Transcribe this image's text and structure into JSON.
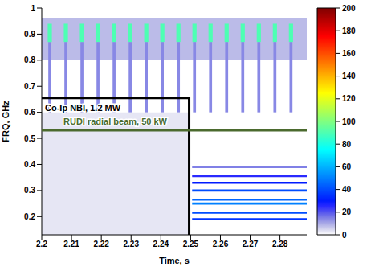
{
  "chart_data": {
    "type": "heatmap",
    "x_label": "Time, s",
    "y_label": "FRQ, GHz",
    "xlim": [
      2.2,
      2.289
    ],
    "xticks": [
      2.2,
      2.21,
      2.22,
      2.23,
      2.24,
      2.25,
      2.26,
      2.27,
      2.28
    ],
    "ylim": [
      0.13,
      1
    ],
    "yticks": [
      0.2,
      0.3,
      0.4,
      0.5,
      0.6,
      0.7,
      0.8,
      0.9,
      1
    ],
    "colorbar": {
      "range": [
        0,
        200
      ],
      "ticks": [
        0,
        20,
        40,
        60,
        80,
        100,
        120,
        140,
        160,
        180,
        200
      ]
    },
    "cells": [
      [
        2.2,
        2.289,
        0.8,
        0.96,
        8
      ],
      [
        2.2,
        2.2495,
        0.13,
        0.6,
        3
      ],
      [
        2.2505,
        2.289,
        0.386,
        0.394,
        15
      ],
      [
        2.2505,
        2.289,
        0.351,
        0.359,
        25
      ],
      [
        2.2505,
        2.289,
        0.326,
        0.334,
        30
      ],
      [
        2.2505,
        2.289,
        0.296,
        0.304,
        40
      ],
      [
        2.2505,
        2.289,
        0.261,
        0.269,
        45
      ],
      [
        2.2505,
        2.289,
        0.246,
        0.254,
        50
      ],
      [
        2.2505,
        2.289,
        0.211,
        0.219,
        40
      ],
      [
        2.2505,
        2.289,
        0.186,
        0.194,
        35
      ],
      [
        2.2022,
        2.2032,
        0.6,
        0.87,
        14
      ],
      [
        2.2076,
        2.2086,
        0.6,
        0.87,
        14
      ],
      [
        2.213,
        2.214,
        0.6,
        0.87,
        14
      ],
      [
        2.2184,
        2.2194,
        0.6,
        0.87,
        14
      ],
      [
        2.2238,
        2.2248,
        0.6,
        0.87,
        14
      ],
      [
        2.2292,
        2.2302,
        0.6,
        0.87,
        14
      ],
      [
        2.2346,
        2.2356,
        0.6,
        0.87,
        14
      ],
      [
        2.24,
        2.241,
        0.6,
        0.87,
        14
      ],
      [
        2.2454,
        2.2464,
        0.6,
        0.87,
        14
      ],
      [
        2.2508,
        2.2518,
        0.6,
        0.87,
        14
      ],
      [
        2.2562,
        2.2572,
        0.6,
        0.87,
        14
      ],
      [
        2.2616,
        2.2626,
        0.6,
        0.87,
        14
      ],
      [
        2.267,
        2.268,
        0.6,
        0.87,
        14
      ],
      [
        2.2724,
        2.2734,
        0.6,
        0.87,
        14
      ],
      [
        2.2778,
        2.2788,
        0.6,
        0.87,
        14
      ],
      [
        2.2832,
        2.2842,
        0.6,
        0.87,
        14
      ],
      [
        2.202,
        2.2034,
        0.87,
        0.94,
        90
      ],
      [
        2.2074,
        2.2088,
        0.87,
        0.94,
        90
      ],
      [
        2.2128,
        2.2142,
        0.87,
        0.94,
        90
      ],
      [
        2.2182,
        2.2196,
        0.87,
        0.94,
        90
      ],
      [
        2.2236,
        2.225,
        0.87,
        0.94,
        90
      ],
      [
        2.229,
        2.2304,
        0.87,
        0.94,
        90
      ],
      [
        2.2344,
        2.2358,
        0.87,
        0.94,
        90
      ],
      [
        2.2398,
        2.2412,
        0.87,
        0.94,
        90
      ],
      [
        2.2452,
        2.2466,
        0.87,
        0.94,
        90
      ],
      [
        2.2506,
        2.252,
        0.87,
        0.94,
        90
      ],
      [
        2.256,
        2.2574,
        0.87,
        0.94,
        90
      ],
      [
        2.2614,
        2.2628,
        0.87,
        0.94,
        90
      ],
      [
        2.2668,
        2.2682,
        0.87,
        0.94,
        90
      ],
      [
        2.2722,
        2.2736,
        0.87,
        0.94,
        90
      ],
      [
        2.2776,
        2.279,
        0.87,
        0.94,
        90
      ],
      [
        2.283,
        2.2844,
        0.87,
        0.94,
        90
      ]
    ],
    "series": [
      {
        "name": "Co-Ip NBI, 1.2 MW",
        "type": "line",
        "color": "#000000",
        "x": [
          2.2,
          2.2495,
          2.2495
        ],
        "values": [
          0.655,
          0.655,
          0.13
        ]
      },
      {
        "name": "RUDI radial beam, 50 kW",
        "type": "line",
        "color": "#4b6a2e",
        "x": [
          2.2,
          2.289
        ],
        "values": [
          0.53,
          0.53
        ]
      }
    ]
  }
}
